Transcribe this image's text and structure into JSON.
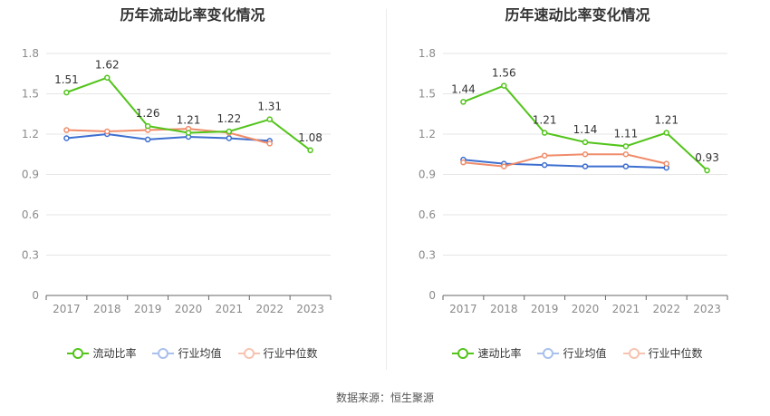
{
  "source": "数据来源：恒生聚源",
  "chart_data": [
    {
      "type": "line",
      "title": "历年流动比率变化情况",
      "categories": [
        "2017",
        "2018",
        "2019",
        "2020",
        "2021",
        "2022",
        "2023"
      ],
      "ylim": [
        0,
        1.8
      ],
      "yticks": [
        0,
        0.3,
        0.6,
        0.9,
        1.2,
        1.5,
        1.8
      ],
      "grid": true,
      "legend_position": "bottom",
      "series": [
        {
          "name": "流动比率",
          "color": "#52c41a",
          "values": [
            1.51,
            1.62,
            1.26,
            1.21,
            1.22,
            1.31,
            1.08
          ],
          "labels": [
            "1.51",
            "1.62",
            "1.26",
            "1.21",
            "1.22",
            "1.31",
            "1.08"
          ]
        },
        {
          "name": "行业均值",
          "color": "#3e6fd0",
          "values": [
            1.17,
            1.2,
            1.16,
            1.18,
            1.17,
            1.15,
            null
          ]
        },
        {
          "name": "行业中位数",
          "color": "#f08c6a",
          "values": [
            1.23,
            1.22,
            1.23,
            1.24,
            1.21,
            1.13,
            null
          ]
        }
      ]
    },
    {
      "type": "line",
      "title": "历年速动比率变化情况",
      "categories": [
        "2017",
        "2018",
        "2019",
        "2020",
        "2021",
        "2022",
        "2023"
      ],
      "ylim": [
        0,
        1.8
      ],
      "yticks": [
        0,
        0.3,
        0.6,
        0.9,
        1.2,
        1.5,
        1.8
      ],
      "grid": true,
      "legend_position": "bottom",
      "series": [
        {
          "name": "速动比率",
          "color": "#52c41a",
          "values": [
            1.44,
            1.56,
            1.21,
            1.14,
            1.11,
            1.21,
            0.93
          ],
          "labels": [
            "1.44",
            "1.56",
            "1.21",
            "1.14",
            "1.11",
            "1.21",
            "0.93"
          ]
        },
        {
          "name": "行业均值",
          "color": "#3e6fd0",
          "values": [
            1.01,
            0.98,
            0.97,
            0.96,
            0.96,
            0.95,
            null
          ]
        },
        {
          "name": "行业中位数",
          "color": "#f08c6a",
          "values": [
            0.99,
            0.96,
            1.04,
            1.05,
            1.05,
            0.98,
            null
          ]
        }
      ]
    }
  ]
}
